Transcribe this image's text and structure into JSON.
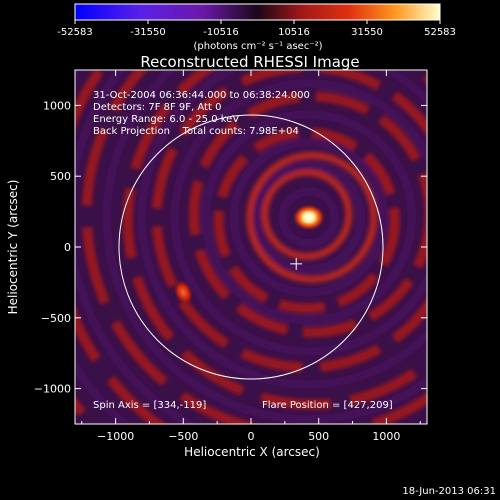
{
  "colorbar": {
    "ticks": [
      "-52583",
      "-31550",
      "-10516",
      "10516",
      "31550",
      "52583"
    ],
    "tick_values": [
      -52583,
      -31550,
      -10516,
      10516,
      31550,
      52583
    ],
    "range": [
      -52583,
      52583
    ],
    "units": "(photons cm⁻² s⁻¹ asec⁻²)"
  },
  "chart_data": {
    "type": "heatmap",
    "title": "Reconstructed RHESSI Image",
    "xlabel": "Heliocentric X (arcsec)",
    "ylabel": "Heliocentric Y (arcsec)",
    "xlim": [
      -1300,
      1300
    ],
    "ylim": [
      -1250,
      1250
    ],
    "xticks": [
      -1000,
      -500,
      0,
      500,
      1000
    ],
    "yticks": [
      -1000,
      -500,
      0,
      500,
      1000
    ],
    "xtick_labels": [
      "−1000",
      "−500",
      "0",
      "500",
      "1000"
    ],
    "ytick_labels": [
      "−1000",
      "−500",
      "0",
      "500",
      "1000"
    ],
    "annotations": [
      "31-Oct-2004 06:36:44.000 to 06:38:24.000",
      "Detectors: 7F 8F 9F, Att 0",
      "Energy Range: 6.0 - 25.0 keV",
      "Back Projection    Total counts: 7.98E+04"
    ],
    "spin_axis": "Spin Axis = [334,-119]",
    "flare_position": "Flare Position = [427,209]",
    "solar_limb": {
      "center": [
        0,
        0
      ],
      "radius": 975
    },
    "cross": [
      334,
      -119
    ],
    "source": {
      "x": 427,
      "y": 209
    },
    "secondary_source": {
      "x": -500,
      "y": -320
    },
    "colormap": [
      "#0000ff",
      "#6a10c0",
      "#3a1048",
      "#000000",
      "#a01818",
      "#e63010",
      "#ff9020",
      "#ffffa0",
      "#ffffff"
    ]
  },
  "footer": {
    "timestamp": "18-Jun-2013 06:31"
  }
}
